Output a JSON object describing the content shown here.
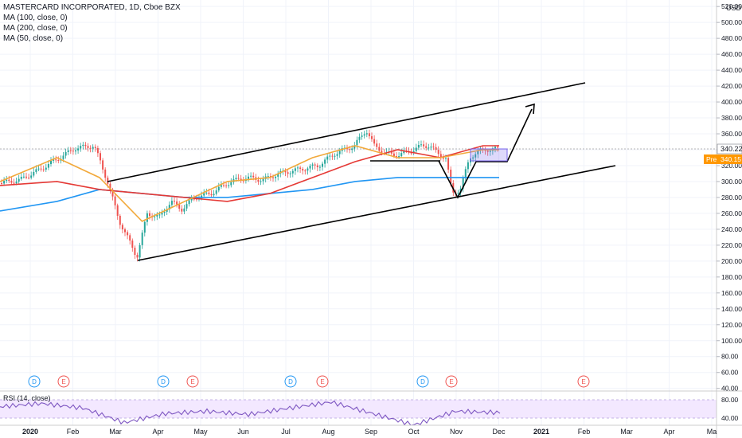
{
  "legend": {
    "title": "MASTERCARD INCORPORATED, 1D, Cboe BZX",
    "ma100": "MA (100, close, 0)",
    "ma200": "MA (200, close, 0)",
    "ma50": "MA (50, close, 0)",
    "rsi": "RSI (14, close)"
  },
  "price_axis": {
    "currency": "USD",
    "ticks": [
      "520.00",
      "500.00",
      "480.00",
      "460.00",
      "440.00",
      "420.00",
      "400.00",
      "380.00",
      "360.00",
      "340.00",
      "320.00",
      "300.00",
      "280.00",
      "260.00",
      "240.00",
      "220.00",
      "200.00",
      "180.00",
      "160.00",
      "140.00",
      "120.00",
      "100.00",
      "80.00",
      "60.00",
      "40.00"
    ],
    "last_label": "340.22",
    "pre_tag": "Pre",
    "pre_label": "340.15"
  },
  "rsi_axis": {
    "ticks": [
      "80.00",
      "40.00"
    ]
  },
  "time_axis": {
    "ticks": [
      "2020",
      "Feb",
      "Mar",
      "Apr",
      "May",
      "Jun",
      "Jul",
      "Aug",
      "Sep",
      "Oct",
      "Nov",
      "Dec",
      "2021",
      "Feb",
      "Mar",
      "Apr",
      "Ma"
    ]
  },
  "events": [
    "D",
    "E",
    "D",
    "E",
    "D",
    "E",
    "D",
    "E",
    "E"
  ],
  "colors": {
    "up": "#26a69a",
    "down": "#ef5350",
    "ma50": "#f2a93b",
    "ma100": "#e53935",
    "ma200": "#2196f3",
    "rsi": "#7e57c2",
    "rsi_band": "#f3e8ff",
    "drawing": "#000000",
    "pre": "#ff9800"
  },
  "chart_data": {
    "type": "line",
    "title": "MASTERCARD INCORPORATED, 1D, Cboe BZX",
    "ylim": [
      40,
      530
    ],
    "x": [
      "2020-01",
      "2020-02",
      "2020-03",
      "2020-04",
      "2020-05",
      "2020-06",
      "2020-07",
      "2020-08",
      "2020-09",
      "2020-10",
      "2020-11",
      "2020-12"
    ],
    "series": [
      {
        "name": "MA (50, close, 0)",
        "values": [
          300,
          330,
          305,
          250,
          275,
          300,
          305,
          330,
          345,
          330,
          330,
          340
        ]
      },
      {
        "name": "MA (100, close, 0)",
        "values": [
          295,
          300,
          290,
          285,
          280,
          275,
          285,
          305,
          325,
          340,
          330,
          345
        ]
      },
      {
        "name": "MA (200, close, 0)",
        "values": [
          263,
          275,
          290,
          285,
          280,
          280,
          285,
          290,
          300,
          305,
          305,
          305
        ]
      }
    ],
    "rsi_ylim": [
      20,
      90
    ],
    "rsi_values": [
      65,
      72,
      62,
      30,
      50,
      55,
      48,
      62,
      75,
      50,
      25,
      55,
      52
    ],
    "last_price": 340.22,
    "premarket_price": 340.15
  }
}
